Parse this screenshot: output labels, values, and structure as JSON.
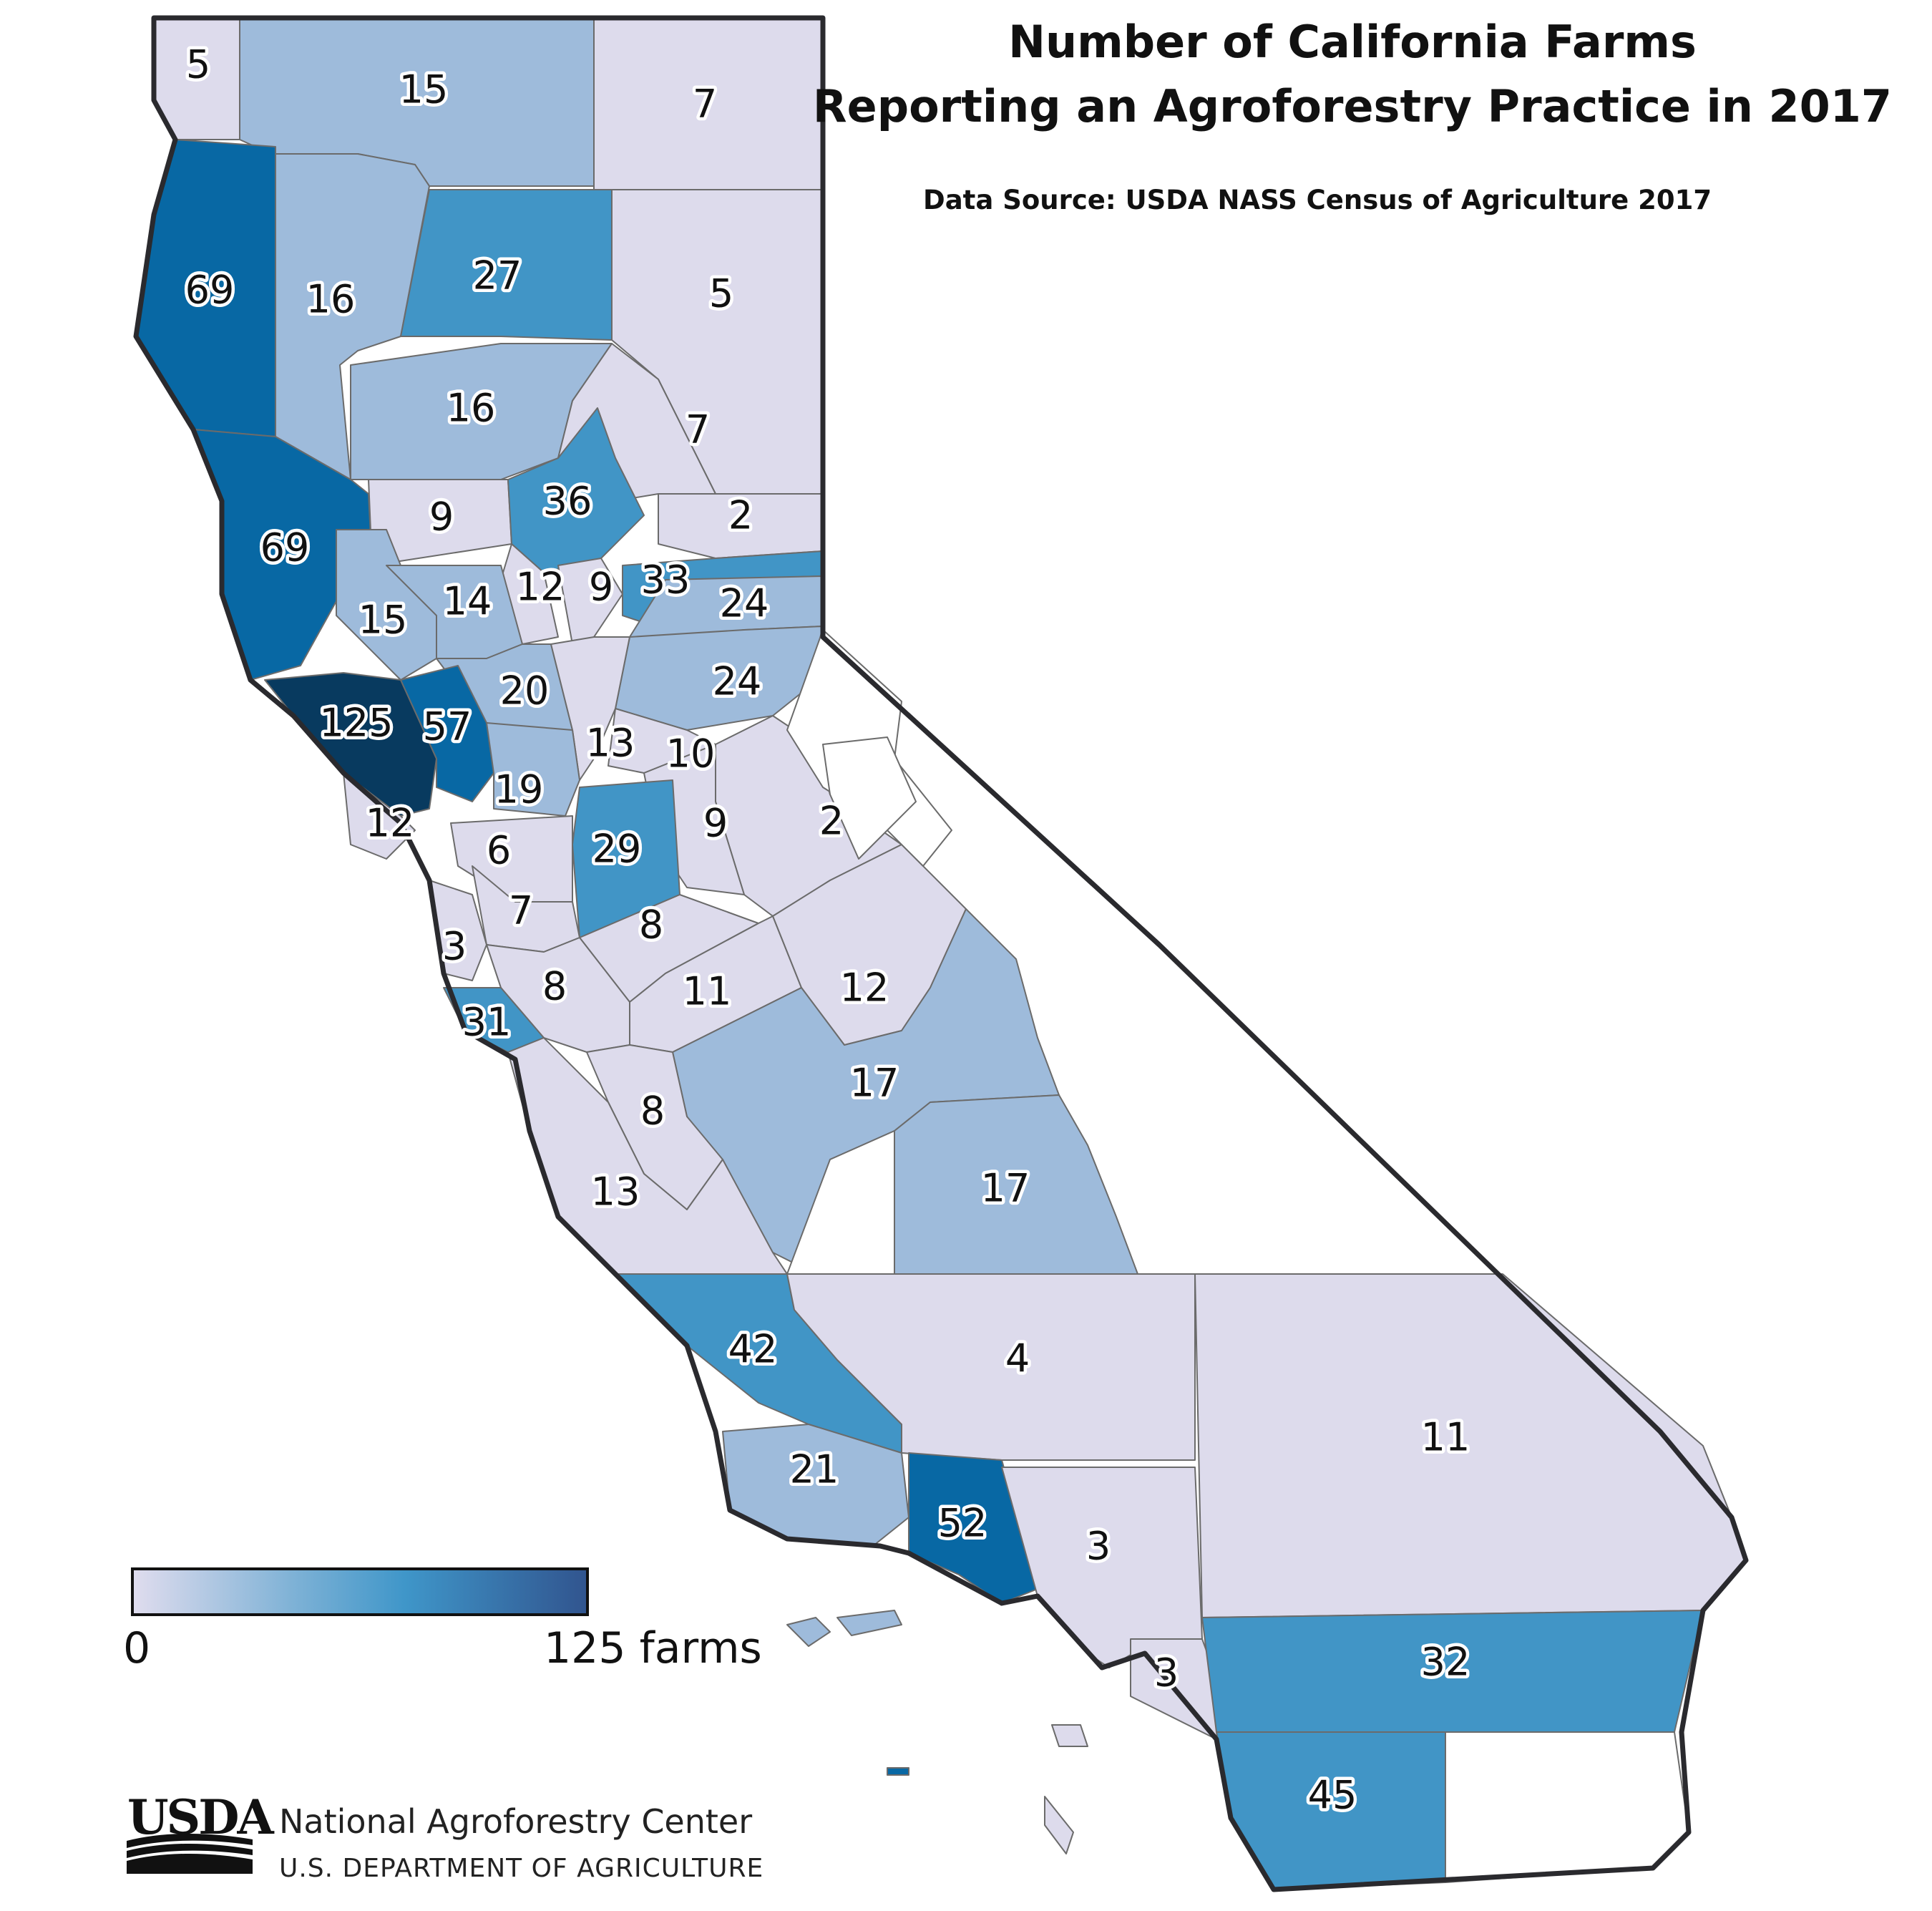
{
  "title_line1": "Number of California Farms",
  "title_line2": "Reporting an Agroforestry Practice in 2017",
  "source": "Data Source: USDA NASS Census of Agriculture 2017",
  "legend": {
    "min_label": "0",
    "max_label": "125 farms",
    "min": 0,
    "max": 125,
    "colors": [
      "#dfdcee",
      "#7fb2d6",
      "#3f96c9",
      "#31558f"
    ]
  },
  "org": {
    "logo_text": "USDA",
    "name": "National Agroforestry Center",
    "department": "U.S. DEPARTMENT OF AGRICULTURE"
  },
  "colors": {
    "very_low": "#dddbec",
    "low": "#9ebbdb",
    "mid": "#4195c6",
    "high": "#0868a4",
    "max": "#083a5f",
    "no_data": "#ffffff"
  },
  "county_values": [
    "5",
    "15",
    "7",
    "69",
    "16",
    "27",
    "5",
    "16",
    "7",
    "9",
    "36",
    "2",
    "69",
    "12",
    "9",
    "33",
    "24",
    "15",
    "14",
    "24",
    "20",
    "125",
    "57",
    "13",
    "10",
    "19",
    "12",
    "2",
    "9",
    "29",
    "6",
    "7",
    "8",
    "3",
    "11",
    "12",
    "8",
    "31",
    "17",
    "8",
    "17",
    "13",
    "42",
    "4",
    "11",
    "21",
    "52",
    "3",
    "3",
    "32",
    "45"
  ]
}
